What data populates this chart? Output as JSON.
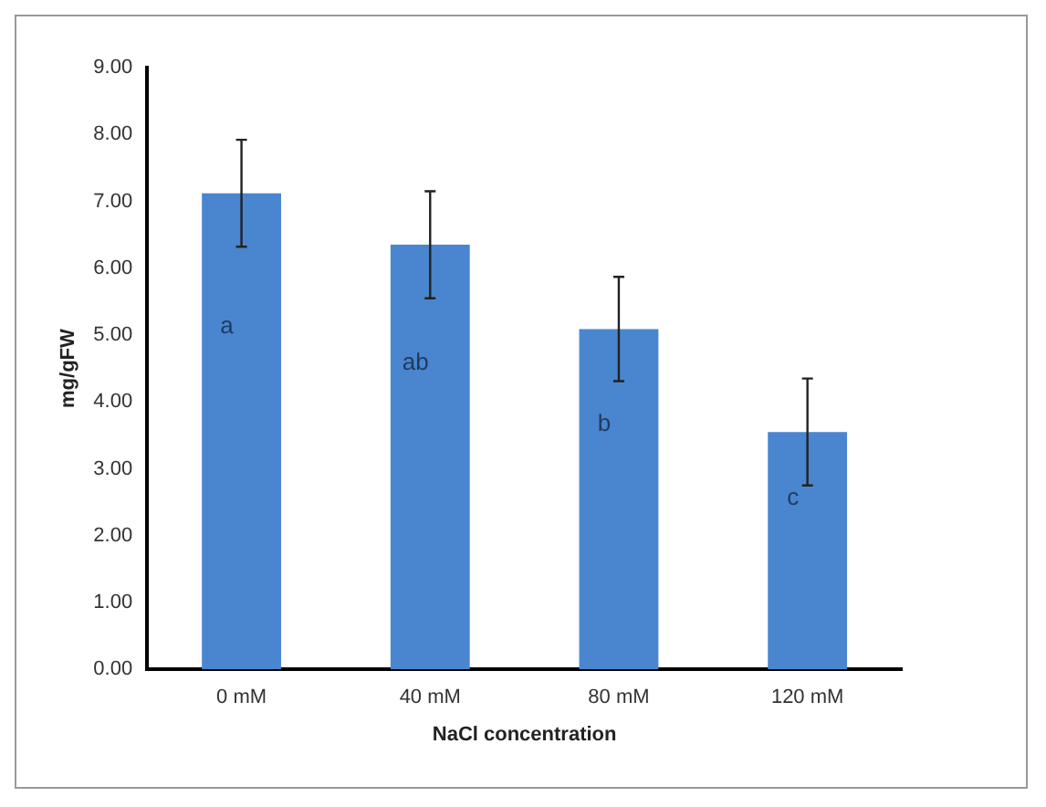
{
  "chart_data": {
    "type": "bar",
    "xlabel": "NaCl concentration",
    "ylabel": "mg/gFW",
    "categories": [
      "0 mM",
      "40 mM",
      "80 mM",
      "120 mM"
    ],
    "values": [
      7.12,
      6.35,
      5.09,
      3.55
    ],
    "errors": [
      0.8,
      0.8,
      0.78,
      0.8
    ],
    "color": "#4a86cf",
    "ylim": [
      0,
      9
    ],
    "yticks": [
      {
        "value": 0,
        "label": "0.00"
      },
      {
        "value": 1,
        "label": "1.00"
      },
      {
        "value": 2,
        "label": "2.00"
      },
      {
        "value": 3,
        "label": "3.00"
      },
      {
        "value": 4,
        "label": "4.00"
      },
      {
        "value": 5,
        "label": "5.00"
      },
      {
        "value": 6,
        "label": "6.00"
      },
      {
        "value": 7,
        "label": "7.00"
      },
      {
        "value": 8,
        "label": "8.00"
      },
      {
        "value": 9,
        "label": "9.00"
      }
    ],
    "annotations": [
      "a",
      "ab",
      "b",
      "c"
    ],
    "grid": false,
    "legend": false
  }
}
